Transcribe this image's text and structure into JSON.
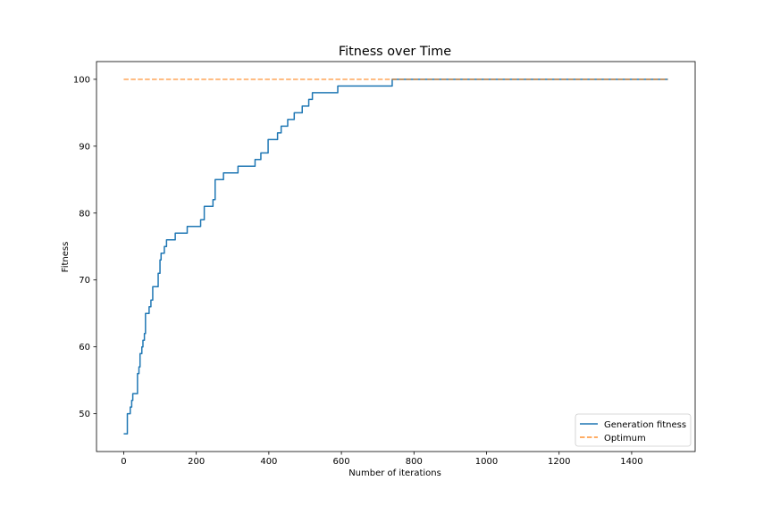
{
  "chart_data": {
    "type": "line",
    "title": "Fitness over Time",
    "xlabel": "Number of iterations",
    "ylabel": "Fitness",
    "xlim": [
      -75,
      1575
    ],
    "ylim": [
      44.35,
      102.65
    ],
    "xticks": [
      0,
      200,
      400,
      600,
      800,
      1000,
      1200,
      1400
    ],
    "yticks": [
      50,
      60,
      70,
      80,
      90,
      100
    ],
    "grid": false,
    "legend_position": "lower right",
    "series": [
      {
        "name": "Generation fitness",
        "color": "#1f77b4",
        "style": "solid",
        "step": true,
        "x": [
          0,
          5,
          10,
          15,
          18,
          22,
          25,
          32,
          38,
          42,
          45,
          50,
          53,
          57,
          60,
          65,
          70,
          75,
          80,
          85,
          88,
          92,
          95,
          100,
          103,
          108,
          112,
          118,
          122,
          138,
          142,
          170,
          175,
          208,
          212,
          220,
          222,
          242,
          246,
          250,
          252,
          270,
          275,
          310,
          315,
          358,
          362,
          372,
          378,
          392,
          398,
          420,
          424,
          430,
          434,
          448,
          452,
          465,
          470,
          488,
          492,
          505,
          510,
          515,
          520,
          585,
          590,
          735,
          740,
          1500
        ],
        "values": [
          47,
          47,
          50,
          50,
          51,
          52,
          53,
          53,
          56,
          57,
          59,
          60,
          61,
          62,
          65,
          65,
          66,
          67,
          69,
          69,
          69,
          69,
          71,
          73,
          74,
          74,
          75,
          76,
          76,
          76,
          77,
          77,
          78,
          78,
          79,
          79,
          81,
          81,
          82,
          82,
          85,
          85,
          86,
          86,
          87,
          87,
          88,
          88,
          89,
          89,
          91,
          91,
          92,
          92,
          93,
          93,
          94,
          94,
          95,
          95,
          96,
          96,
          97,
          97,
          98,
          98,
          99,
          99,
          100,
          100
        ]
      },
      {
        "name": "Optimum",
        "color": "#ff7f0e",
        "style": "dashed",
        "x": [
          0,
          1500
        ],
        "values": [
          100,
          100
        ]
      }
    ]
  }
}
